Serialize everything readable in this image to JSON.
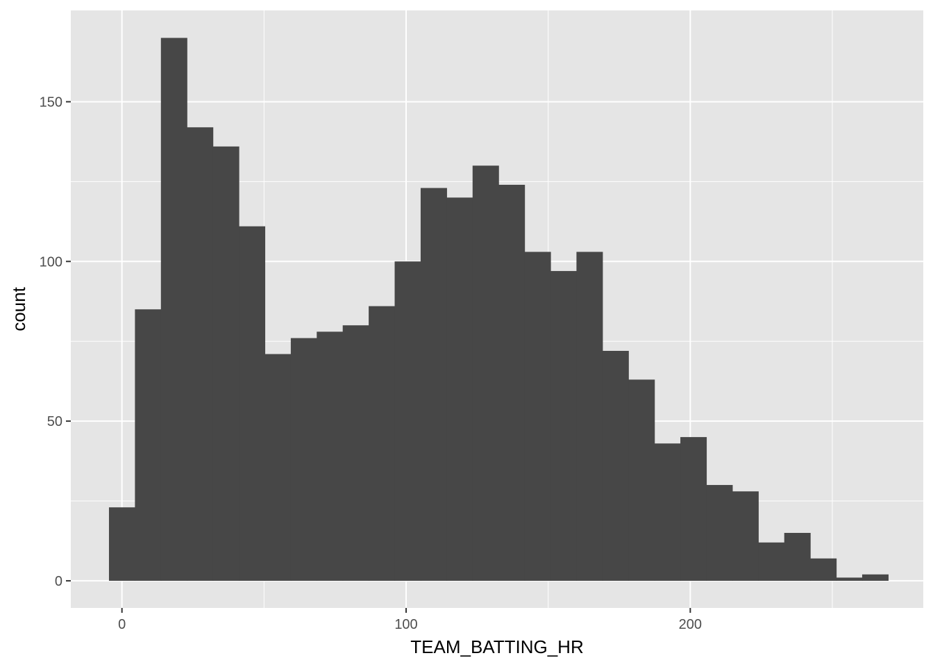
{
  "chart_data": {
    "type": "bar",
    "xlabel": "TEAM_BATTING_HR",
    "ylabel": "count",
    "xlim": [
      -18,
      282
    ],
    "ylim": [
      -8.5,
      178.6
    ],
    "x_ticks": [
      {
        "value": 0,
        "label": "0"
      },
      {
        "value": 100,
        "label": "100"
      },
      {
        "value": 200,
        "label": "200"
      }
    ],
    "x_minor": [
      50,
      150,
      250
    ],
    "y_ticks": [
      {
        "value": 0,
        "label": "0"
      },
      {
        "value": 50,
        "label": "50"
      },
      {
        "value": 100,
        "label": "100"
      },
      {
        "value": 150,
        "label": "150"
      }
    ],
    "y_minor": [
      25,
      75,
      125
    ],
    "bin_width": 9.14,
    "bins": [
      {
        "x0": -4.57,
        "count": 23
      },
      {
        "x0": 4.57,
        "count": 85
      },
      {
        "x0": 13.71,
        "count": 170
      },
      {
        "x0": 22.85,
        "count": 142
      },
      {
        "x0": 31.99,
        "count": 136
      },
      {
        "x0": 41.13,
        "count": 111
      },
      {
        "x0": 50.27,
        "count": 71
      },
      {
        "x0": 59.41,
        "count": 76
      },
      {
        "x0": 68.55,
        "count": 78
      },
      {
        "x0": 77.69,
        "count": 80
      },
      {
        "x0": 86.83,
        "count": 86
      },
      {
        "x0": 95.97,
        "count": 100
      },
      {
        "x0": 105.11,
        "count": 123
      },
      {
        "x0": 114.25,
        "count": 120
      },
      {
        "x0": 123.39,
        "count": 130
      },
      {
        "x0": 132.53,
        "count": 124
      },
      {
        "x0": 141.67,
        "count": 103
      },
      {
        "x0": 150.81,
        "count": 97
      },
      {
        "x0": 159.95,
        "count": 103
      },
      {
        "x0": 169.09,
        "count": 72
      },
      {
        "x0": 178.23,
        "count": 63
      },
      {
        "x0": 187.37,
        "count": 43
      },
      {
        "x0": 196.51,
        "count": 45
      },
      {
        "x0": 205.65,
        "count": 30
      },
      {
        "x0": 214.79,
        "count": 28
      },
      {
        "x0": 223.93,
        "count": 12
      },
      {
        "x0": 233.07,
        "count": 15
      },
      {
        "x0": 242.21,
        "count": 7
      },
      {
        "x0": 251.35,
        "count": 1
      },
      {
        "x0": 260.49,
        "count": 2
      }
    ],
    "colors": {
      "panel": "#e5e5e5",
      "grid": "#ffffff",
      "bar": "#474747",
      "tick": "#333333"
    }
  }
}
